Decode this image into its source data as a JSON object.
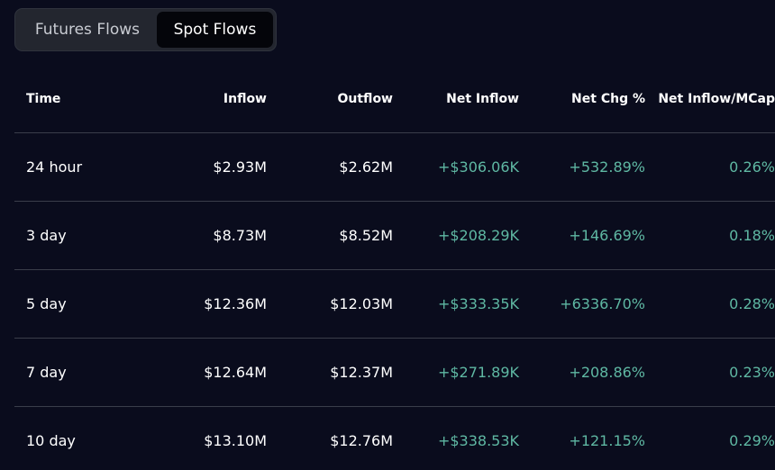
{
  "tabs": [
    {
      "label": "Futures Flows",
      "active": false
    },
    {
      "label": "Spot Flows",
      "active": true
    }
  ],
  "columns": {
    "time": "Time",
    "inflow": "Inflow",
    "outflow": "Outflow",
    "net_inflow": "Net Inflow",
    "net_chg": "Net Chg %",
    "net_inflow_mcap": "Net Inflow/MCap"
  },
  "rows": [
    {
      "time": "24 hour",
      "inflow": "$2.93M",
      "outflow": "$2.62M",
      "net_inflow": "+$306.06K",
      "net_chg": "+532.89%",
      "net_inflow_mcap": "0.26%"
    },
    {
      "time": "3 day",
      "inflow": "$8.73M",
      "outflow": "$8.52M",
      "net_inflow": "+$208.29K",
      "net_chg": "+146.69%",
      "net_inflow_mcap": "0.18%"
    },
    {
      "time": "5 day",
      "inflow": "$12.36M",
      "outflow": "$12.03M",
      "net_inflow": "+$333.35K",
      "net_chg": "+6336.70%",
      "net_inflow_mcap": "0.28%"
    },
    {
      "time": "7 day",
      "inflow": "$12.64M",
      "outflow": "$12.37M",
      "net_inflow": "+$271.89K",
      "net_chg": "+208.86%",
      "net_inflow_mcap": "0.23%"
    },
    {
      "time": "10 day",
      "inflow": "$13.10M",
      "outflow": "$12.76M",
      "net_inflow": "+$338.53K",
      "net_chg": "+121.15%",
      "net_inflow_mcap": "0.29%"
    }
  ],
  "colors": {
    "background": "#0a0c1d",
    "positive": "#5fb8a3",
    "tab_active_bg": "#04050a",
    "tab_container_bg": "#23262f"
  }
}
